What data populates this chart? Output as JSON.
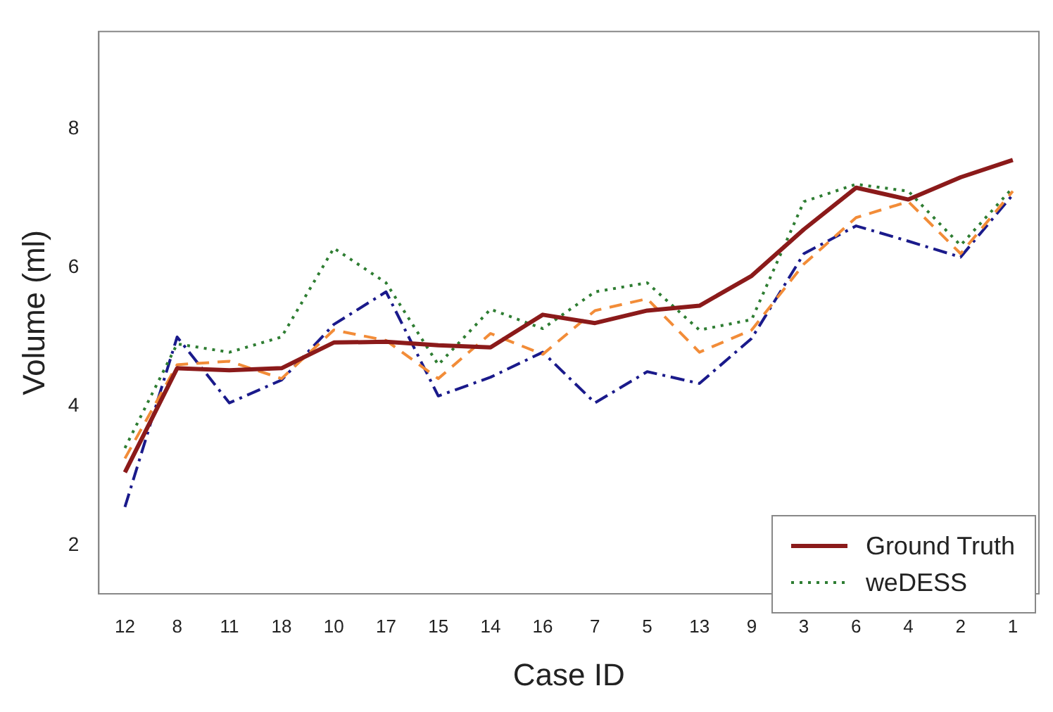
{
  "chart_data": {
    "type": "line",
    "xlabel": "Case ID",
    "ylabel": "Volume (ml)",
    "categories": [
      "12",
      "8",
      "11",
      "18",
      "10",
      "17",
      "15",
      "14",
      "16",
      "7",
      "5",
      "13",
      "9",
      "3",
      "6",
      "4",
      "2",
      "1"
    ],
    "series": [
      {
        "name": "Ground Truth",
        "color": "#8b1a1a",
        "line_style": "solid",
        "values": [
          3.05,
          4.55,
          4.52,
          4.55,
          4.92,
          4.93,
          4.88,
          4.85,
          5.32,
          5.2,
          5.38,
          5.45,
          5.88,
          6.55,
          7.15,
          6.98,
          7.3,
          7.55
        ]
      },
      {
        "color": "#f28c38",
        "line_style": "dashed",
        "values": [
          3.25,
          4.6,
          4.65,
          4.4,
          5.1,
          4.95,
          4.4,
          5.05,
          4.75,
          5.38,
          5.55,
          4.78,
          5.1,
          6.05,
          6.72,
          6.95,
          6.2,
          7.1
        ]
      },
      {
        "name": "weDESS",
        "color": "#2e7d32",
        "line_style": "dotted",
        "values": [
          3.4,
          4.9,
          4.78,
          5.0,
          6.28,
          5.78,
          4.6,
          5.4,
          5.12,
          5.65,
          5.78,
          5.1,
          5.25,
          6.95,
          7.2,
          7.1,
          6.32,
          7.15
        ]
      },
      {
        "color": "#1a1a8b",
        "line_style": "dashdot",
        "values": [
          2.55,
          5.0,
          4.05,
          4.38,
          5.18,
          5.65,
          4.15,
          4.42,
          4.78,
          4.05,
          4.5,
          4.33,
          4.98,
          6.2,
          6.6,
          6.38,
          6.15,
          7.05
        ]
      }
    ],
    "ylim": [
      1.3,
      9.4
    ],
    "yticks": [
      2,
      4,
      6,
      8
    ],
    "grid": false,
    "legend": "bottom right",
    "marker": "none"
  }
}
